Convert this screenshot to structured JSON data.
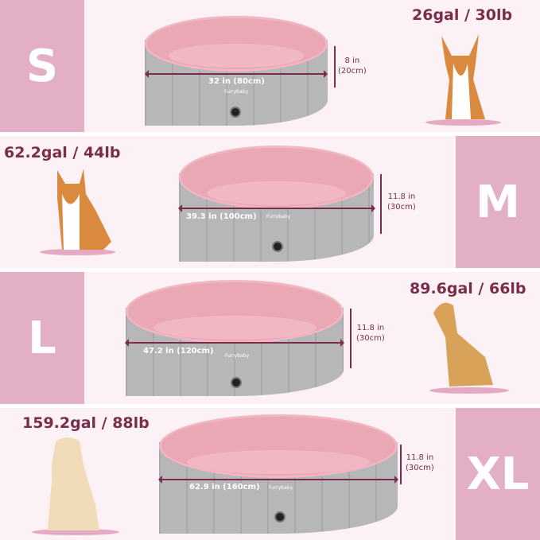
{
  "brand": "Furrybaby",
  "colors": {
    "background": "#fcf1f5",
    "size_block": "#e2afc4",
    "text": "#7a2d4b",
    "pool_pink": "#eaa7b4",
    "pool_gray": "#b7b7b9"
  },
  "sizes": [
    {
      "label": "S",
      "capacity": "26gal / 30lb",
      "diameter": "32 in (80cm)",
      "height_in": "8 in",
      "height_cm": "(20cm)"
    },
    {
      "label": "M",
      "capacity": "62.2gal / 44lb",
      "diameter": "39.3 in (100cm)",
      "height_in": "11.8 in",
      "height_cm": "(30cm)"
    },
    {
      "label": "L",
      "capacity": "89.6gal / 66lb",
      "diameter": "47.2 in (120cm)",
      "height_in": "11.8 in",
      "height_cm": "(30cm)"
    },
    {
      "label": "XL",
      "capacity": "159.2gal / 88lb",
      "diameter": "62.9 in (160cm)",
      "height_in": "11.8 in",
      "height_cm": "(30cm)"
    }
  ]
}
